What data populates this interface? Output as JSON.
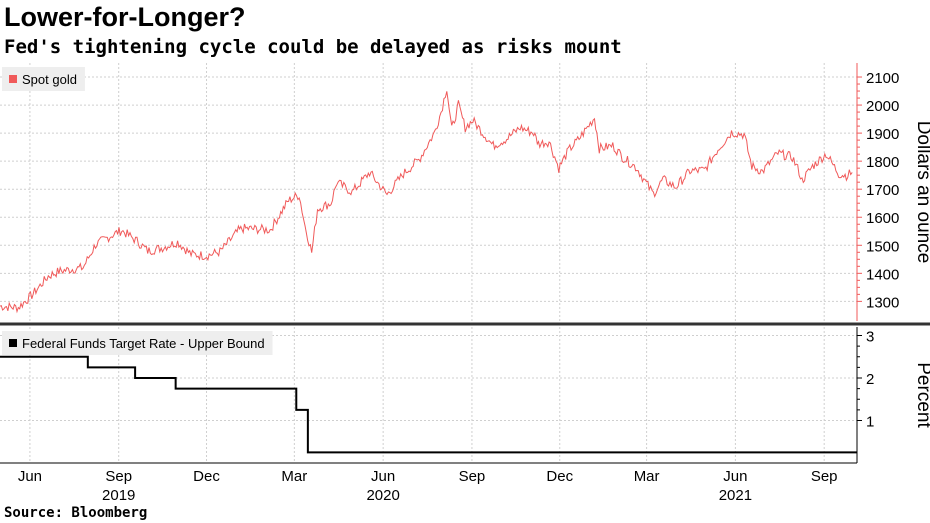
{
  "title": "Lower-for-Longer?",
  "subtitle": "Fed's tightening cycle could be delayed as risks mount",
  "source": "Source: Bloomberg",
  "chart_data": [
    {
      "type": "line",
      "series": [
        {
          "name": "Spot gold",
          "color": "#f05a5a",
          "points": [
            [
              "2019-05-01",
              1283
            ],
            [
              "2019-05-20",
              1278
            ],
            [
              "2019-06-03",
              1322
            ],
            [
              "2019-06-20",
              1390
            ],
            [
              "2019-07-01",
              1407
            ],
            [
              "2019-07-15",
              1415
            ],
            [
              "2019-07-26",
              1420
            ],
            [
              "2019-08-08",
              1502
            ],
            [
              "2019-08-27",
              1540
            ],
            [
              "2019-09-04",
              1553
            ],
            [
              "2019-09-20",
              1515
            ],
            [
              "2019-10-01",
              1480
            ],
            [
              "2019-10-15",
              1490
            ],
            [
              "2019-11-01",
              1512
            ],
            [
              "2019-11-15",
              1468
            ],
            [
              "2019-12-01",
              1463
            ],
            [
              "2019-12-15",
              1477
            ],
            [
              "2020-01-03",
              1552
            ],
            [
              "2020-01-08",
              1560
            ],
            [
              "2020-01-20",
              1558
            ],
            [
              "2020-02-05",
              1555
            ],
            [
              "2020-02-24",
              1660
            ],
            [
              "2020-03-06",
              1680
            ],
            [
              "2020-03-12",
              1570
            ],
            [
              "2020-03-19",
              1475
            ],
            [
              "2020-03-25",
              1630
            ],
            [
              "2020-04-08",
              1650
            ],
            [
              "2020-04-14",
              1725
            ],
            [
              "2020-04-30",
              1690
            ],
            [
              "2020-05-18",
              1760
            ],
            [
              "2020-06-05",
              1680
            ],
            [
              "2020-06-22",
              1755
            ],
            [
              "2020-07-08",
              1805
            ],
            [
              "2020-07-24",
              1900
            ],
            [
              "2020-07-31",
              1975
            ],
            [
              "2020-08-06",
              2063
            ],
            [
              "2020-08-11",
              1912
            ],
            [
              "2020-08-18",
              2000
            ],
            [
              "2020-08-25",
              1920
            ],
            [
              "2020-09-02",
              1945
            ],
            [
              "2020-09-23",
              1855
            ],
            [
              "2020-10-07",
              1880
            ],
            [
              "2020-10-21",
              1920
            ],
            [
              "2020-11-04",
              1900
            ],
            [
              "2020-11-09",
              1862
            ],
            [
              "2020-11-20",
              1870
            ],
            [
              "2020-11-30",
              1775
            ],
            [
              "2020-12-10",
              1838
            ],
            [
              "2020-12-21",
              1880
            ],
            [
              "2021-01-06",
              1955
            ],
            [
              "2021-01-11",
              1845
            ],
            [
              "2021-01-25",
              1855
            ],
            [
              "2021-02-05",
              1812
            ],
            [
              "2021-02-19",
              1775
            ],
            [
              "2021-02-26",
              1735
            ],
            [
              "2021-03-08",
              1683
            ],
            [
              "2021-03-18",
              1735
            ],
            [
              "2021-03-31",
              1707
            ],
            [
              "2021-04-15",
              1765
            ],
            [
              "2021-04-30",
              1768
            ],
            [
              "2021-05-14",
              1843
            ],
            [
              "2021-05-28",
              1903
            ],
            [
              "2021-06-10",
              1895
            ],
            [
              "2021-06-18",
              1782
            ],
            [
              "2021-06-29",
              1763
            ],
            [
              "2021-07-15",
              1828
            ],
            [
              "2021-07-30",
              1814
            ],
            [
              "2021-08-06",
              1763
            ],
            [
              "2021-08-09",
              1730
            ],
            [
              "2021-08-20",
              1782
            ],
            [
              "2021-09-03",
              1826
            ],
            [
              "2021-09-16",
              1755
            ],
            [
              "2021-09-24",
              1749
            ],
            [
              "2021-09-30",
              1760
            ]
          ]
        }
      ],
      "xlabel": "",
      "ylabel": "Dollars an ounce",
      "ylim": [
        1230,
        2150
      ],
      "yticks": [
        1300,
        1400,
        1500,
        1600,
        1700,
        1800,
        1900,
        2000,
        2100
      ],
      "grid": true,
      "legend": "top-left"
    },
    {
      "type": "line",
      "step": true,
      "series": [
        {
          "name": "Federal Funds Target Rate - Upper Bound",
          "color": "#000000",
          "points": [
            [
              "2019-05-01",
              2.5
            ],
            [
              "2019-07-31",
              2.25
            ],
            [
              "2019-09-18",
              2.0
            ],
            [
              "2019-10-30",
              1.75
            ],
            [
              "2020-03-03",
              1.25
            ],
            [
              "2020-03-15",
              0.25
            ],
            [
              "2021-10-05",
              0.25
            ]
          ]
        }
      ],
      "xlabel": "",
      "ylabel": "Percent",
      "ylim": [
        0,
        3.2
      ],
      "yticks": [
        1,
        2,
        3
      ],
      "grid": true,
      "legend": "top-left"
    }
  ],
  "x_axis": {
    "range": [
      "2019-05-01",
      "2021-10-05"
    ],
    "month_ticks": [
      {
        "date": "2019-06-01",
        "label": "Jun"
      },
      {
        "date": "2019-09-01",
        "label": "Sep"
      },
      {
        "date": "2019-12-01",
        "label": "Dec"
      },
      {
        "date": "2020-03-01",
        "label": "Mar"
      },
      {
        "date": "2020-06-01",
        "label": "Jun"
      },
      {
        "date": "2020-09-01",
        "label": "Sep"
      },
      {
        "date": "2020-12-01",
        "label": "Dec"
      },
      {
        "date": "2021-03-01",
        "label": "Mar"
      },
      {
        "date": "2021-06-01",
        "label": "Jun"
      },
      {
        "date": "2021-09-01",
        "label": "Sep"
      }
    ],
    "year_ticks": [
      {
        "date": "2019-09-01",
        "label": "2019"
      },
      {
        "date": "2020-06-01",
        "label": "2020"
      },
      {
        "date": "2021-06-01",
        "label": "2021"
      }
    ]
  }
}
